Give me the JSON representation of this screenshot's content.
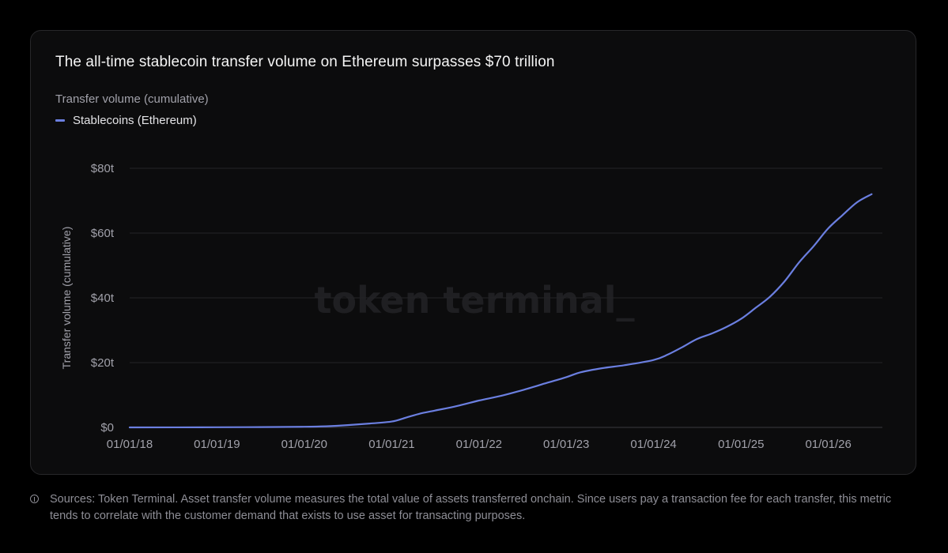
{
  "chart_data": {
    "type": "line",
    "title": "The all-time stablecoin transfer volume on Ethereum surpasses $70 trillion",
    "subtitle": "Transfer volume (cumulative)",
    "ylabel": "Transfer volume (cumulative)",
    "xlabel": "",
    "ylim": [
      0,
      80
    ],
    "y_unit": "trillion USD",
    "yticks": [
      {
        "value": 0,
        "label": "$0"
      },
      {
        "value": 20,
        "label": "$20t"
      },
      {
        "value": 40,
        "label": "$40t"
      },
      {
        "value": 60,
        "label": "$60t"
      },
      {
        "value": 80,
        "label": "$80t"
      }
    ],
    "xlim": [
      "2018-01-01",
      "2026-08-15"
    ],
    "xticks": [
      {
        "date": "2018-01-01",
        "label": "01/01/18"
      },
      {
        "date": "2019-01-01",
        "label": "01/01/19"
      },
      {
        "date": "2020-01-01",
        "label": "01/01/20"
      },
      {
        "date": "2021-01-01",
        "label": "01/01/21"
      },
      {
        "date": "2022-01-01",
        "label": "01/01/22"
      },
      {
        "date": "2023-01-01",
        "label": "01/01/23"
      },
      {
        "date": "2024-01-01",
        "label": "01/01/24"
      },
      {
        "date": "2025-01-01",
        "label": "01/01/25"
      },
      {
        "date": "2026-01-01",
        "label": "01/01/26"
      }
    ],
    "grid": "horizontal",
    "legend_position": "top-left",
    "series": [
      {
        "name": "Stablecoins (Ethereum)",
        "color": "#6b7fe0",
        "points": [
          [
            "2018-01-01",
            0.0
          ],
          [
            "2019-01-01",
            0.05
          ],
          [
            "2019-07-01",
            0.1
          ],
          [
            "2020-01-01",
            0.2
          ],
          [
            "2020-04-01",
            0.35
          ],
          [
            "2020-07-01",
            0.7
          ],
          [
            "2020-10-01",
            1.2
          ],
          [
            "2021-01-01",
            1.8
          ],
          [
            "2021-03-01",
            3.0
          ],
          [
            "2021-05-01",
            4.3
          ],
          [
            "2021-07-01",
            5.2
          ],
          [
            "2021-10-01",
            6.6
          ],
          [
            "2022-01-01",
            8.3
          ],
          [
            "2022-04-01",
            9.7
          ],
          [
            "2022-07-01",
            11.5
          ],
          [
            "2022-10-01",
            13.5
          ],
          [
            "2023-01-01",
            15.5
          ],
          [
            "2023-03-01",
            17.0
          ],
          [
            "2023-06-01",
            18.3
          ],
          [
            "2023-09-01",
            19.2
          ],
          [
            "2024-01-01",
            20.8
          ],
          [
            "2024-03-01",
            22.5
          ],
          [
            "2024-05-01",
            24.8
          ],
          [
            "2024-07-01",
            27.3
          ],
          [
            "2024-09-01",
            29.0
          ],
          [
            "2024-11-01",
            31.0
          ],
          [
            "2025-01-01",
            33.5
          ],
          [
            "2025-03-01",
            36.8
          ],
          [
            "2025-05-01",
            40.3
          ],
          [
            "2025-07-01",
            45.0
          ],
          [
            "2025-09-01",
            51.0
          ],
          [
            "2025-11-01",
            56.0
          ],
          [
            "2026-01-01",
            61.5
          ],
          [
            "2026-03-01",
            65.5
          ],
          [
            "2026-05-01",
            69.5
          ],
          [
            "2026-07-01",
            72.0
          ]
        ]
      }
    ],
    "watermark": "token terminal_"
  },
  "footer": {
    "icon": "info-icon",
    "text": "Sources: Token Terminal. Asset transfer volume measures the total value of assets transferred onchain. Since users pay a transaction fee for each transfer, this metric tends to correlate with the customer demand that exists to use asset for transacting purposes."
  },
  "colors": {
    "background": "#000000",
    "card": "#0c0c0d",
    "grid": "#232326",
    "line": "#6b7fe0",
    "axis_text": "#a1a1aa"
  }
}
